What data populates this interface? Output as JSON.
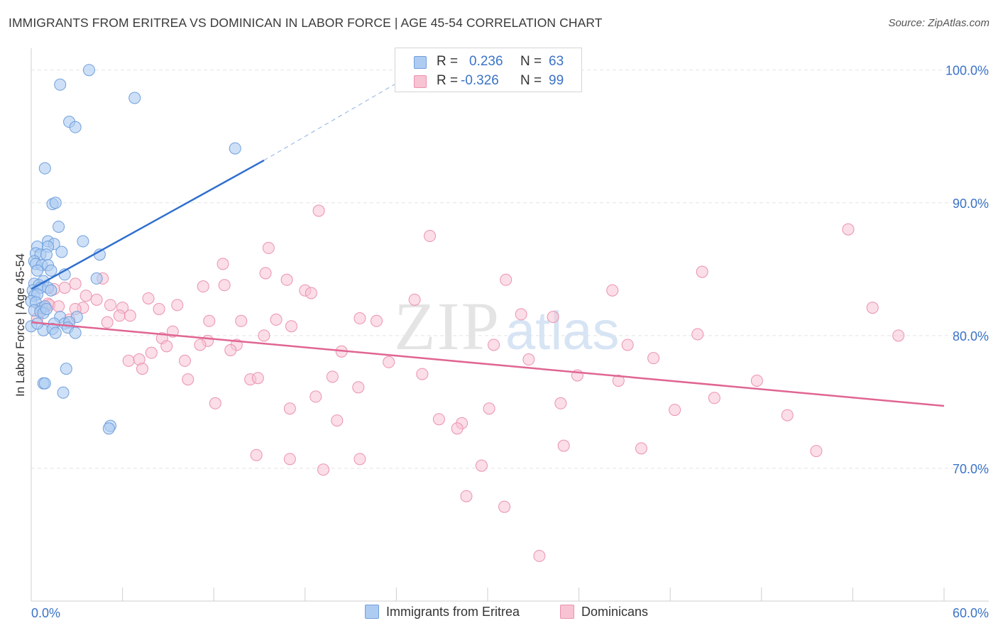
{
  "header": {
    "title": "IMMIGRANTS FROM ERITREA VS DOMINICAN IN LABOR FORCE | AGE 45-54 CORRELATION CHART",
    "source": "Source: ZipAtlas.com"
  },
  "legend": {
    "rows": [
      {
        "r_label": "R =",
        "r_value": "0.236",
        "n_label": "N =",
        "n_value": "63"
      },
      {
        "r_label": "R =",
        "r_value": "-0.326",
        "n_label": "N =",
        "n_value": "99"
      }
    ]
  },
  "bottom_legend": {
    "eritrea": "Immigrants from Eritrea",
    "dominicans": "Dominicans"
  },
  "watermark": {
    "zip": "ZIP",
    "atlas": "atlas"
  },
  "colors": {
    "eritrea_fill": "#aecbf2",
    "eritrea_stroke": "#6f9fdc",
    "eritrea_line": "#2f6fcf",
    "dominican_fill": "#f8c3d3",
    "dominican_stroke": "#eb92ae",
    "dominican_line": "#e06592",
    "axis_label": "#3b73c7",
    "grid": "#e3e3e3"
  },
  "chart_data": {
    "type": "scatter",
    "title": "IMMIGRANTS FROM ERITREA VS DOMINICAN IN LABOR FORCE | AGE 45-54 CORRELATION CHART",
    "xlabel": "",
    "ylabel": "In Labor Force | Age 45-54",
    "xlim": [
      0,
      60
    ],
    "ylim": [
      60,
      101
    ],
    "x_tick_labels": [
      "0.0%",
      "60.0%"
    ],
    "y_ticks": [
      70,
      80,
      90,
      100
    ],
    "y_tick_labels": [
      "70.0%",
      "80.0%",
      "90.0%",
      "100.0%"
    ],
    "grid": "horizontal dashed",
    "legend_position": "top-center",
    "series": [
      {
        "name": "Immigrants from Eritrea",
        "points": [
          [
            3.8,
            100.0
          ],
          [
            1.9,
            98.9
          ],
          [
            6.8,
            97.9
          ],
          [
            2.5,
            96.1
          ],
          [
            2.9,
            95.7
          ],
          [
            13.4,
            94.1
          ],
          [
            0.9,
            92.6
          ],
          [
            1.4,
            89.9
          ],
          [
            1.6,
            90.0
          ],
          [
            1.8,
            88.2
          ],
          [
            3.4,
            87.1
          ],
          [
            1.1,
            87.1
          ],
          [
            1.5,
            86.9
          ],
          [
            0.4,
            86.7
          ],
          [
            1.1,
            86.7
          ],
          [
            0.3,
            86.2
          ],
          [
            0.6,
            86.1
          ],
          [
            1.0,
            86.1
          ],
          [
            2.0,
            86.3
          ],
          [
            4.5,
            86.1
          ],
          [
            0.2,
            85.6
          ],
          [
            0.3,
            85.4
          ],
          [
            0.7,
            85.3
          ],
          [
            1.1,
            85.3
          ],
          [
            0.4,
            84.9
          ],
          [
            1.3,
            84.9
          ],
          [
            2.2,
            84.6
          ],
          [
            4.3,
            84.3
          ],
          [
            0.8,
            84.1
          ],
          [
            0.2,
            83.9
          ],
          [
            0.5,
            83.8
          ],
          [
            0.1,
            83.4
          ],
          [
            0.6,
            83.6
          ],
          [
            1.1,
            83.6
          ],
          [
            1.3,
            83.4
          ],
          [
            0.2,
            83.0
          ],
          [
            0.4,
            83.1
          ],
          [
            0.0,
            82.6
          ],
          [
            0.3,
            82.5
          ],
          [
            0.7,
            82.1
          ],
          [
            0.9,
            82.2
          ],
          [
            0.2,
            81.9
          ],
          [
            0.6,
            81.8
          ],
          [
            0.8,
            81.7
          ],
          [
            3.0,
            81.4
          ],
          [
            1.9,
            81.4
          ],
          [
            2.2,
            80.9
          ],
          [
            2.5,
            81.0
          ],
          [
            1.5,
            80.9
          ],
          [
            0.0,
            80.7
          ],
          [
            0.8,
            80.4
          ],
          [
            1.4,
            80.5
          ],
          [
            1.6,
            80.2
          ],
          [
            2.4,
            80.6
          ],
          [
            2.9,
            80.2
          ],
          [
            2.3,
            77.5
          ],
          [
            0.8,
            76.4
          ],
          [
            0.9,
            76.4
          ],
          [
            2.1,
            75.7
          ],
          [
            5.2,
            73.2
          ],
          [
            5.1,
            73.0
          ],
          [
            0.4,
            80.9
          ],
          [
            1.0,
            82.0
          ]
        ]
      },
      {
        "name": "Dominicans",
        "points": [
          [
            18.9,
            89.4
          ],
          [
            26.2,
            87.5
          ],
          [
            53.7,
            88.0
          ],
          [
            15.6,
            86.6
          ],
          [
            12.6,
            85.4
          ],
          [
            15.4,
            84.7
          ],
          [
            44.1,
            84.8
          ],
          [
            31.2,
            84.2
          ],
          [
            16.8,
            84.2
          ],
          [
            4.7,
            84.3
          ],
          [
            2.9,
            83.9
          ],
          [
            11.3,
            83.7
          ],
          [
            12.7,
            83.8
          ],
          [
            18.0,
            83.4
          ],
          [
            18.4,
            83.2
          ],
          [
            2.2,
            83.6
          ],
          [
            1.5,
            83.5
          ],
          [
            38.2,
            83.4
          ],
          [
            3.6,
            83.0
          ],
          [
            7.7,
            82.8
          ],
          [
            4.3,
            82.7
          ],
          [
            25.2,
            82.7
          ],
          [
            1.1,
            82.4
          ],
          [
            1.2,
            82.3
          ],
          [
            5.2,
            82.3
          ],
          [
            6.0,
            82.1
          ],
          [
            9.6,
            82.3
          ],
          [
            8.4,
            82.0
          ],
          [
            3.4,
            82.1
          ],
          [
            2.9,
            82.0
          ],
          [
            55.3,
            82.1
          ],
          [
            32.2,
            81.6
          ],
          [
            34.3,
            81.4
          ],
          [
            5.8,
            81.5
          ],
          [
            0.4,
            81.3
          ],
          [
            2.5,
            81.2
          ],
          [
            5.0,
            81.0
          ],
          [
            11.7,
            81.1
          ],
          [
            13.8,
            81.1
          ],
          [
            16.1,
            81.2
          ],
          [
            21.6,
            81.3
          ],
          [
            22.7,
            81.1
          ],
          [
            17.1,
            80.7
          ],
          [
            9.3,
            80.3
          ],
          [
            43.8,
            80.1
          ],
          [
            8.6,
            79.8
          ],
          [
            15.3,
            80.0
          ],
          [
            57.0,
            80.0
          ],
          [
            11.6,
            79.6
          ],
          [
            11.1,
            79.3
          ],
          [
            13.5,
            79.3
          ],
          [
            8.9,
            79.2
          ],
          [
            30.4,
            79.3
          ],
          [
            39.2,
            79.3
          ],
          [
            13.1,
            78.9
          ],
          [
            7.9,
            78.7
          ],
          [
            20.4,
            78.8
          ],
          [
            6.4,
            78.1
          ],
          [
            7.1,
            78.2
          ],
          [
            10.1,
            78.1
          ],
          [
            23.5,
            78.0
          ],
          [
            32.7,
            78.2
          ],
          [
            40.9,
            78.3
          ],
          [
            7.3,
            77.5
          ],
          [
            25.7,
            77.1
          ],
          [
            35.9,
            77.0
          ],
          [
            19.8,
            76.9
          ],
          [
            10.3,
            76.7
          ],
          [
            14.4,
            76.7
          ],
          [
            14.9,
            76.8
          ],
          [
            38.6,
            76.6
          ],
          [
            47.7,
            76.6
          ],
          [
            21.5,
            76.1
          ],
          [
            18.7,
            75.4
          ],
          [
            44.9,
            75.3
          ],
          [
            12.1,
            74.9
          ],
          [
            34.8,
            74.9
          ],
          [
            17.0,
            74.5
          ],
          [
            30.1,
            74.5
          ],
          [
            42.3,
            74.4
          ],
          [
            49.7,
            74.0
          ],
          [
            20.1,
            73.6
          ],
          [
            26.8,
            73.7
          ],
          [
            28.3,
            73.4
          ],
          [
            28.0,
            73.0
          ],
          [
            35.0,
            71.7
          ],
          [
            40.1,
            71.5
          ],
          [
            51.6,
            71.3
          ],
          [
            14.8,
            71.0
          ],
          [
            17.0,
            70.7
          ],
          [
            21.6,
            70.7
          ],
          [
            19.2,
            69.9
          ],
          [
            29.6,
            70.2
          ],
          [
            28.6,
            67.9
          ],
          [
            31.1,
            67.1
          ],
          [
            33.4,
            63.4
          ],
          [
            1.8,
            82.2
          ],
          [
            0.6,
            82.0
          ],
          [
            6.5,
            81.5
          ]
        ]
      }
    ],
    "trend_lines": [
      {
        "series": "Immigrants from Eritrea",
        "solid": [
          [
            0.0,
            83.5
          ],
          [
            15.3,
            93.2
          ]
        ],
        "dashed": [
          [
            15.3,
            93.2
          ],
          [
            25.5,
            100.0
          ]
        ]
      },
      {
        "series": "Dominicans",
        "solid": [
          [
            0.0,
            81.0
          ],
          [
            60.0,
            74.7
          ]
        ]
      }
    ]
  }
}
